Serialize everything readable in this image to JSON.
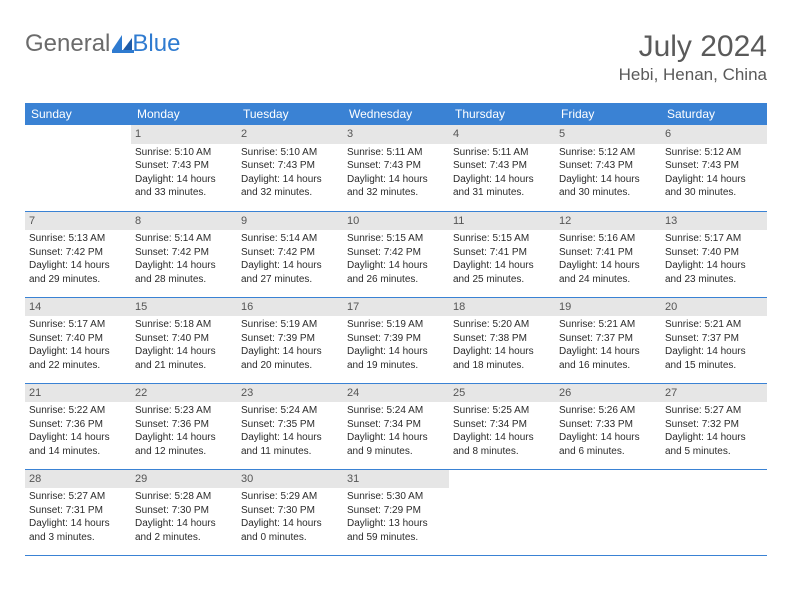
{
  "brand": {
    "part1": "General",
    "part2": "Blue"
  },
  "title": "July 2024",
  "location": "Hebi, Henan, China",
  "colors": {
    "header_bg": "#3a82d4",
    "header_fg": "#ffffff",
    "daynum_bg": "#e6e6e6",
    "daynum_fg": "#555555",
    "rule": "#3a82d4",
    "brand_gray": "#6b6b6b",
    "brand_blue": "#2f7bd0"
  },
  "weekdays": [
    "Sunday",
    "Monday",
    "Tuesday",
    "Wednesday",
    "Thursday",
    "Friday",
    "Saturday"
  ],
  "weeks": [
    [
      {
        "day": "",
        "sunrise": "",
        "sunset": "",
        "daylight": ""
      },
      {
        "day": "1",
        "sunrise": "Sunrise: 5:10 AM",
        "sunset": "Sunset: 7:43 PM",
        "daylight": "Daylight: 14 hours and 33 minutes."
      },
      {
        "day": "2",
        "sunrise": "Sunrise: 5:10 AM",
        "sunset": "Sunset: 7:43 PM",
        "daylight": "Daylight: 14 hours and 32 minutes."
      },
      {
        "day": "3",
        "sunrise": "Sunrise: 5:11 AM",
        "sunset": "Sunset: 7:43 PM",
        "daylight": "Daylight: 14 hours and 32 minutes."
      },
      {
        "day": "4",
        "sunrise": "Sunrise: 5:11 AM",
        "sunset": "Sunset: 7:43 PM",
        "daylight": "Daylight: 14 hours and 31 minutes."
      },
      {
        "day": "5",
        "sunrise": "Sunrise: 5:12 AM",
        "sunset": "Sunset: 7:43 PM",
        "daylight": "Daylight: 14 hours and 30 minutes."
      },
      {
        "day": "6",
        "sunrise": "Sunrise: 5:12 AM",
        "sunset": "Sunset: 7:43 PM",
        "daylight": "Daylight: 14 hours and 30 minutes."
      }
    ],
    [
      {
        "day": "7",
        "sunrise": "Sunrise: 5:13 AM",
        "sunset": "Sunset: 7:42 PM",
        "daylight": "Daylight: 14 hours and 29 minutes."
      },
      {
        "day": "8",
        "sunrise": "Sunrise: 5:14 AM",
        "sunset": "Sunset: 7:42 PM",
        "daylight": "Daylight: 14 hours and 28 minutes."
      },
      {
        "day": "9",
        "sunrise": "Sunrise: 5:14 AM",
        "sunset": "Sunset: 7:42 PM",
        "daylight": "Daylight: 14 hours and 27 minutes."
      },
      {
        "day": "10",
        "sunrise": "Sunrise: 5:15 AM",
        "sunset": "Sunset: 7:42 PM",
        "daylight": "Daylight: 14 hours and 26 minutes."
      },
      {
        "day": "11",
        "sunrise": "Sunrise: 5:15 AM",
        "sunset": "Sunset: 7:41 PM",
        "daylight": "Daylight: 14 hours and 25 minutes."
      },
      {
        "day": "12",
        "sunrise": "Sunrise: 5:16 AM",
        "sunset": "Sunset: 7:41 PM",
        "daylight": "Daylight: 14 hours and 24 minutes."
      },
      {
        "day": "13",
        "sunrise": "Sunrise: 5:17 AM",
        "sunset": "Sunset: 7:40 PM",
        "daylight": "Daylight: 14 hours and 23 minutes."
      }
    ],
    [
      {
        "day": "14",
        "sunrise": "Sunrise: 5:17 AM",
        "sunset": "Sunset: 7:40 PM",
        "daylight": "Daylight: 14 hours and 22 minutes."
      },
      {
        "day": "15",
        "sunrise": "Sunrise: 5:18 AM",
        "sunset": "Sunset: 7:40 PM",
        "daylight": "Daylight: 14 hours and 21 minutes."
      },
      {
        "day": "16",
        "sunrise": "Sunrise: 5:19 AM",
        "sunset": "Sunset: 7:39 PM",
        "daylight": "Daylight: 14 hours and 20 minutes."
      },
      {
        "day": "17",
        "sunrise": "Sunrise: 5:19 AM",
        "sunset": "Sunset: 7:39 PM",
        "daylight": "Daylight: 14 hours and 19 minutes."
      },
      {
        "day": "18",
        "sunrise": "Sunrise: 5:20 AM",
        "sunset": "Sunset: 7:38 PM",
        "daylight": "Daylight: 14 hours and 18 minutes."
      },
      {
        "day": "19",
        "sunrise": "Sunrise: 5:21 AM",
        "sunset": "Sunset: 7:37 PM",
        "daylight": "Daylight: 14 hours and 16 minutes."
      },
      {
        "day": "20",
        "sunrise": "Sunrise: 5:21 AM",
        "sunset": "Sunset: 7:37 PM",
        "daylight": "Daylight: 14 hours and 15 minutes."
      }
    ],
    [
      {
        "day": "21",
        "sunrise": "Sunrise: 5:22 AM",
        "sunset": "Sunset: 7:36 PM",
        "daylight": "Daylight: 14 hours and 14 minutes."
      },
      {
        "day": "22",
        "sunrise": "Sunrise: 5:23 AM",
        "sunset": "Sunset: 7:36 PM",
        "daylight": "Daylight: 14 hours and 12 minutes."
      },
      {
        "day": "23",
        "sunrise": "Sunrise: 5:24 AM",
        "sunset": "Sunset: 7:35 PM",
        "daylight": "Daylight: 14 hours and 11 minutes."
      },
      {
        "day": "24",
        "sunrise": "Sunrise: 5:24 AM",
        "sunset": "Sunset: 7:34 PM",
        "daylight": "Daylight: 14 hours and 9 minutes."
      },
      {
        "day": "25",
        "sunrise": "Sunrise: 5:25 AM",
        "sunset": "Sunset: 7:34 PM",
        "daylight": "Daylight: 14 hours and 8 minutes."
      },
      {
        "day": "26",
        "sunrise": "Sunrise: 5:26 AM",
        "sunset": "Sunset: 7:33 PM",
        "daylight": "Daylight: 14 hours and 6 minutes."
      },
      {
        "day": "27",
        "sunrise": "Sunrise: 5:27 AM",
        "sunset": "Sunset: 7:32 PM",
        "daylight": "Daylight: 14 hours and 5 minutes."
      }
    ],
    [
      {
        "day": "28",
        "sunrise": "Sunrise: 5:27 AM",
        "sunset": "Sunset: 7:31 PM",
        "daylight": "Daylight: 14 hours and 3 minutes."
      },
      {
        "day": "29",
        "sunrise": "Sunrise: 5:28 AM",
        "sunset": "Sunset: 7:30 PM",
        "daylight": "Daylight: 14 hours and 2 minutes."
      },
      {
        "day": "30",
        "sunrise": "Sunrise: 5:29 AM",
        "sunset": "Sunset: 7:30 PM",
        "daylight": "Daylight: 14 hours and 0 minutes."
      },
      {
        "day": "31",
        "sunrise": "Sunrise: 5:30 AM",
        "sunset": "Sunset: 7:29 PM",
        "daylight": "Daylight: 13 hours and 59 minutes."
      },
      {
        "day": "",
        "sunrise": "",
        "sunset": "",
        "daylight": ""
      },
      {
        "day": "",
        "sunrise": "",
        "sunset": "",
        "daylight": ""
      },
      {
        "day": "",
        "sunrise": "",
        "sunset": "",
        "daylight": ""
      }
    ]
  ]
}
